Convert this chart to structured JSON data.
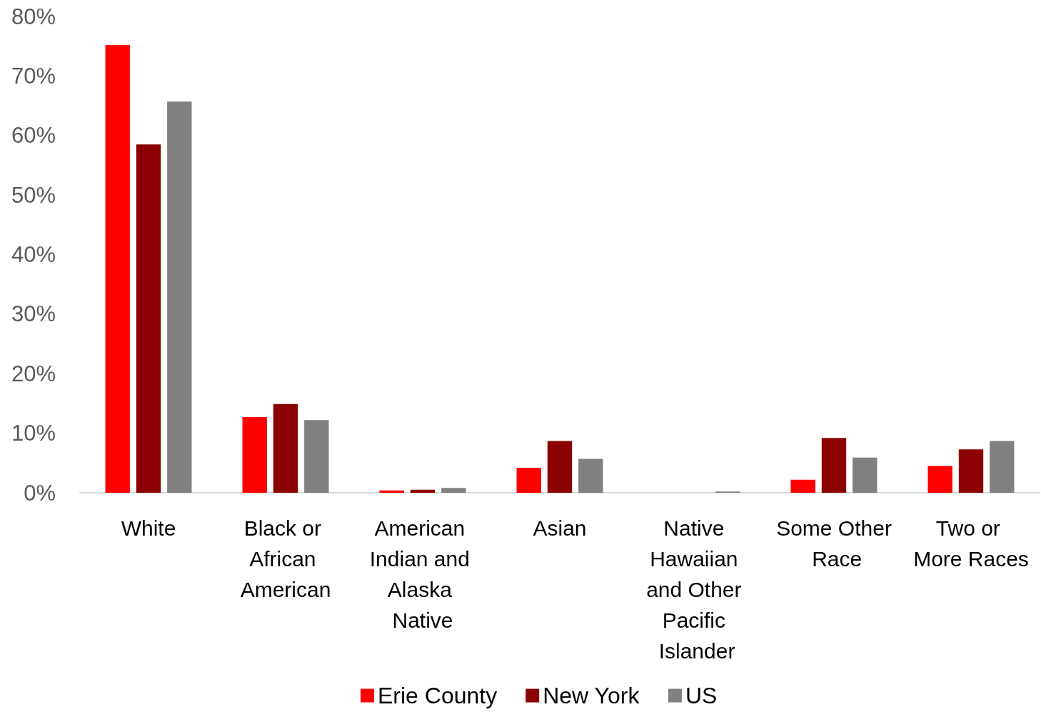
{
  "chart_data": {
    "type": "bar",
    "categories": [
      "White",
      "Black or African American",
      "American Indian and Alaska Native",
      "Asian",
      "Native Hawaiian and Other Pacific Islander",
      "Some Other Race",
      "Two or More Races"
    ],
    "series": [
      {
        "name": "Erie County",
        "color": "#ff0000",
        "values": [
          75.2,
          12.7,
          0.4,
          4.2,
          0,
          2.2,
          4.5
        ]
      },
      {
        "name": "New York",
        "color": "#8b0000",
        "values": [
          58.5,
          14.9,
          0.5,
          8.7,
          0,
          9.2,
          7.3
        ]
      },
      {
        "name": "US",
        "color": "#808080",
        "values": [
          65.7,
          12.2,
          0.8,
          5.7,
          0.2,
          5.9,
          8.7
        ]
      }
    ],
    "ylim": [
      0,
      80
    ],
    "yticks": [
      {
        "value": 0,
        "label": "0%"
      },
      {
        "value": 10,
        "label": "10%"
      },
      {
        "value": 20,
        "label": "20%"
      },
      {
        "value": 30,
        "label": "30%"
      },
      {
        "value": 40,
        "label": "40%"
      },
      {
        "value": 50,
        "label": "50%"
      },
      {
        "value": 60,
        "label": "60%"
      },
      {
        "value": 70,
        "label": "70%"
      },
      {
        "value": 80,
        "label": "80%"
      }
    ],
    "grid": false,
    "legend": "bottom"
  }
}
